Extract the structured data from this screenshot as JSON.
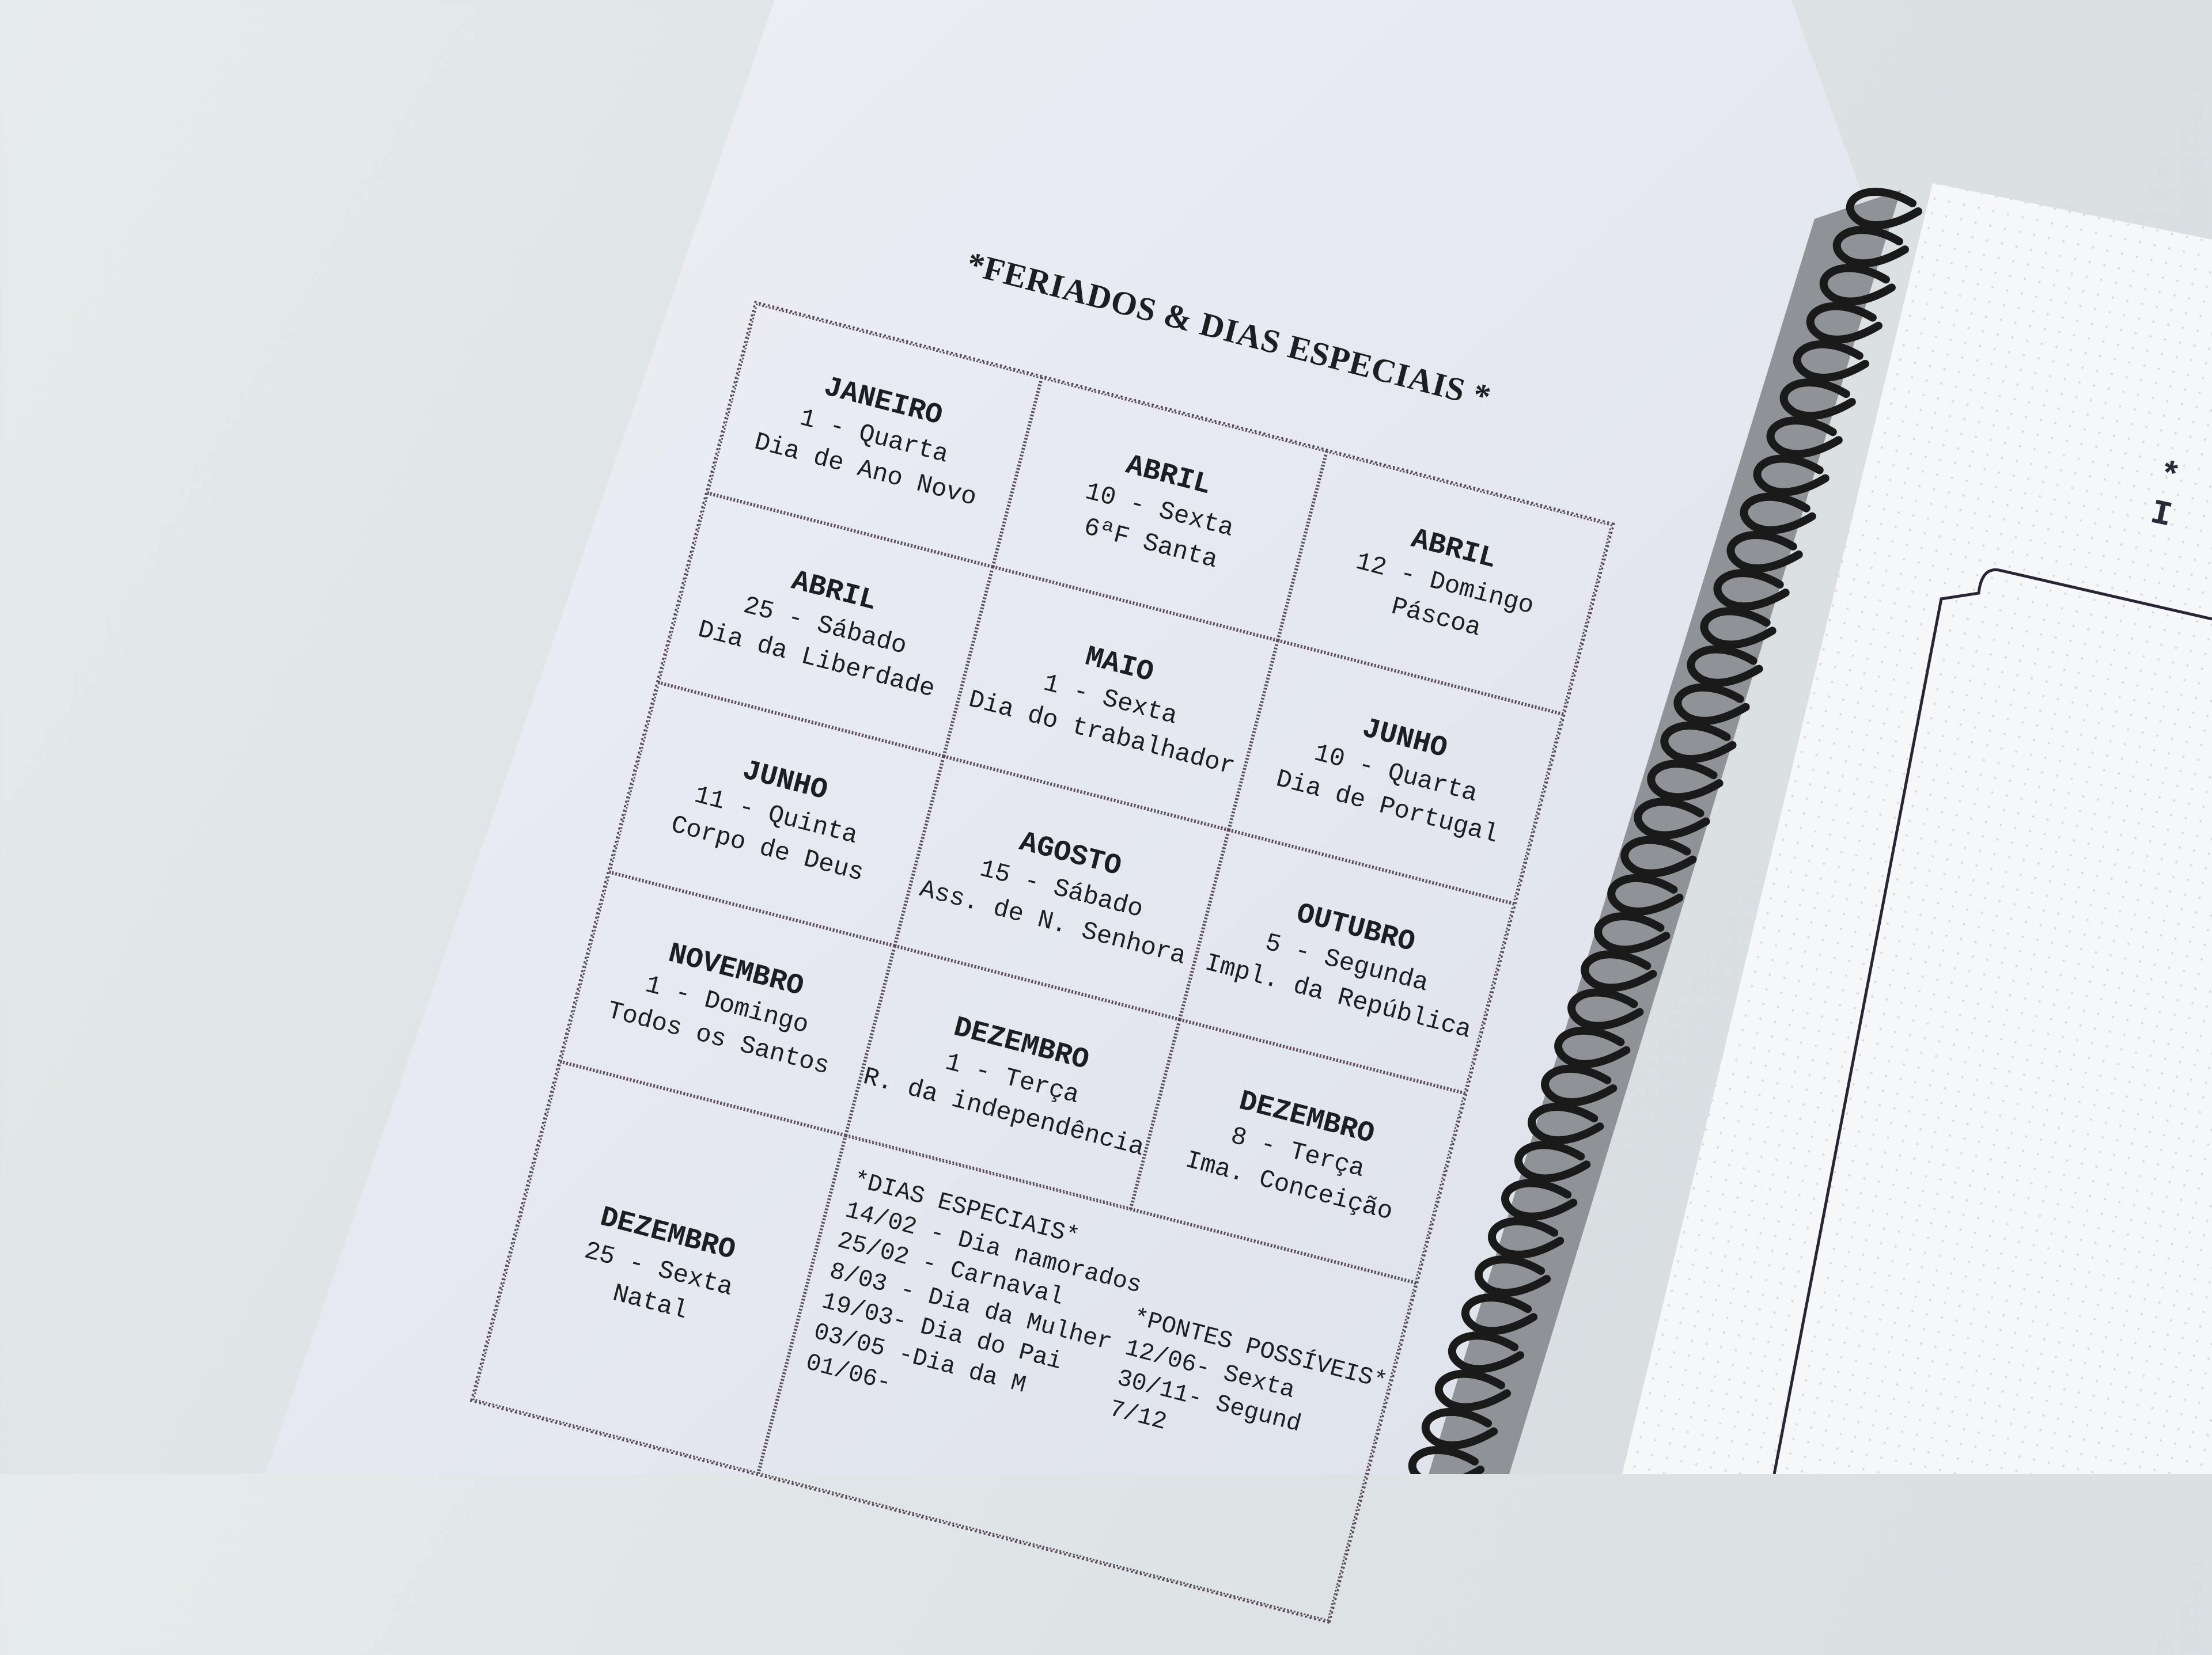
{
  "page": {
    "title": "*FERIADOS & DIAS ESPECIAIS *",
    "holidays": [
      {
        "month": "JANEIRO",
        "day": "1 - Quarta",
        "name": "Dia de Ano Novo"
      },
      {
        "month": "ABRIL",
        "day": "10 - Sexta",
        "name": "6ªF Santa"
      },
      {
        "month": "ABRIL",
        "day": "12 - Domingo",
        "name": "Páscoa"
      },
      {
        "month": "ABRIL",
        "day": "25 - Sábado",
        "name": "Dia da Liberdade"
      },
      {
        "month": "MAIO",
        "day": "1 - Sexta",
        "name": "Dia do trabalhador"
      },
      {
        "month": "JUNHO",
        "day": "10 - Quarta",
        "name": "Dia de Portugal"
      },
      {
        "month": "JUNHO",
        "day": "11 - Quinta",
        "name": "Corpo de Deus"
      },
      {
        "month": "AGOSTO",
        "day": "15 - Sábado",
        "name": "Ass. de N. Senhora"
      },
      {
        "month": "OUTUBRO",
        "day": "5 - Segunda",
        "name": "Impl. da República"
      },
      {
        "month": "NOVEMBRO",
        "day": "1 - Domingo",
        "name": "Todos os Santos"
      },
      {
        "month": "DEZEMBRO",
        "day": "1 - Terça",
        "name": "R. da independência"
      },
      {
        "month": "DEZEMBRO",
        "day": "8 - Terça",
        "name": "Ima. Conceição"
      },
      {
        "month": "DEZEMBRO",
        "day": "25 - Sexta",
        "name": "Natal"
      }
    ],
    "special_days": {
      "title": "*DIAS ESPECIAIS*",
      "items": [
        "14/02 - Dia namorados",
        "25/02 - Carnaval",
        "8/03 - Dia da Mulher",
        "19/03- Dia do Pai",
        "03/05 -Dia da M",
        "01/06-"
      ]
    },
    "bridges": {
      "title": "*PONTES POSSÍVEIS*",
      "items": [
        "12/06- Sexta",
        "30/11- Segund",
        "7/12"
      ]
    }
  },
  "right_page": {
    "heading": "* I"
  },
  "colors": {
    "paper": "#eceff4",
    "ink": "#1d1d24",
    "dots": "#5a4a5a",
    "spiral": "#1a1a1a",
    "desk": "#dde3e5"
  }
}
